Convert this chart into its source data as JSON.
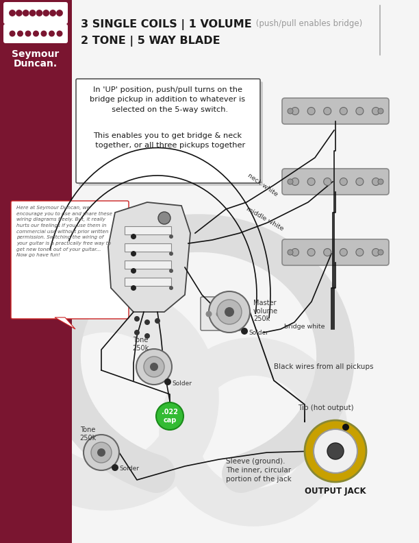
{
  "bg_color": "#f5f5f5",
  "header_bar_color": "#7a1530",
  "title_bold": "3 SINGLE COILS | 1 VOLUME",
  "title_normal": " (push/pull enables bridge)",
  "title_line2": "2 TONE | 5 WAY BLADE",
  "brand_line1": "Seymour",
  "brand_line2": "Duncan.",
  "info_text1": "In 'UP' position, push/pull turns on the\nbridge pickup in addition to whatever is\n  selected on the 5-way switch.",
  "info_text2": "This enables you to get bridge & neck\n  together, or all three pickups together",
  "disclaimer": "Here at Seymour Duncan, we\nencourage you to use and share these\nwiring diagrams freely. But, it really\nhurts our feelings if you use them in\ncommercial use without prior written\npermission. Switching the wiring of\nyour guitar is a practically free way to\nget new tones out of your guitar...\nNow go have fun!",
  "label_neck": "neck white",
  "label_middle": "middle white",
  "label_bridge_w": "bridge white",
  "label_vol": "Master\nvolume\n250k",
  "label_solder_v": "Solder",
  "label_tone1": "Tone\n250k",
  "label_solder1": "Solder",
  "label_tone2": "Tone\n250k",
  "label_solder2": "Solder",
  "label_cap": ".022\ncap",
  "label_black": "Black wires from all pickups",
  "label_tip": "Tip (hot output)",
  "label_sleeve": "Sleeve (ground).\nThe inner, circular\nportion of the jack",
  "label_jack": "OUTPUT JACK",
  "pickup_fill": "#c0c0c0",
  "pickup_edge": "#888888",
  "switch_fill": "#e0e0e0",
  "pot_fill": "#d0d0d0",
  "pot_edge": "#666666",
  "cap_fill": "#33bb33",
  "jack_gold": "#c8a000",
  "jack_white": "#f0f0f0",
  "wire_color": "#111111",
  "divider_color": "#aaaaaa",
  "red_border": "#cc2222",
  "watermark_color": "#e8e8e8",
  "shadow_color": "#cccccc"
}
